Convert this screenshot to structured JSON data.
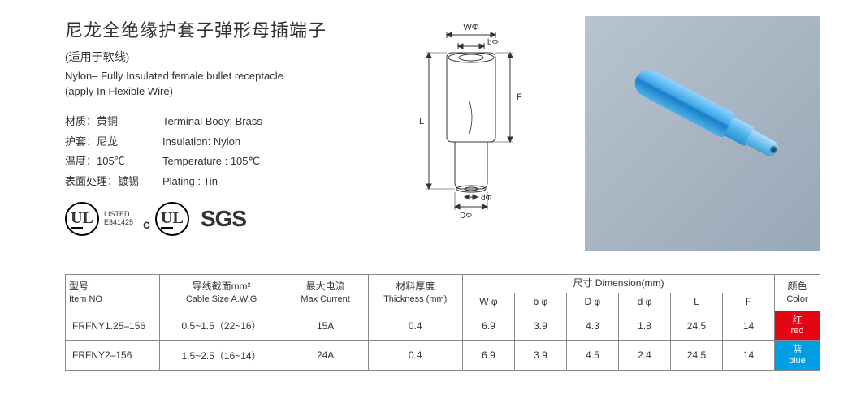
{
  "header": {
    "title_zh": "尼龙全绝缘护套子弹形母插端子",
    "subtitle_zh": "(适用于软线)",
    "title_en": "Nylon– Fully Insulated female bullet receptacle",
    "subtitle_en": "(apply In Flexible Wire)"
  },
  "specs": [
    {
      "zh": "材质：黄铜",
      "en": "Terminal Body: Brass"
    },
    {
      "zh": "护套：尼龙",
      "en": "Insulation: Nylon"
    },
    {
      "zh": "温度：105℃",
      "en": "Temperature : 105℃"
    },
    {
      "zh": "表面处理：镀锡",
      "en": "Plating : Tin"
    }
  ],
  "certs": {
    "ul": "UL",
    "listed": "LISTED",
    "listed_no": "E341425",
    "cul_prefix": "c",
    "sgs": "SGS"
  },
  "diagram": {
    "labels": {
      "W": "WΦ",
      "b": "bΦ",
      "F": "F",
      "L": "L",
      "D": "DΦ",
      "d": "dΦ"
    }
  },
  "photo": {
    "alt": "blue nylon insulated female bullet receptacle",
    "bg_gradient": [
      "#b8c4d0",
      "#98a8b8"
    ],
    "connector_color": "#3fa8e8"
  },
  "table": {
    "headers": {
      "item_zh": "型号",
      "item_en": "Item NO",
      "cable_zh": "导线截面mm²",
      "cable_en": "Cable Size  A.W.G",
      "max_zh": "最大电流",
      "max_en": "Max Current",
      "thk_zh": "材料厚度",
      "thk_en": "Thickness (mm)",
      "dim_zh": "尺寸",
      "dim_en": "Dimension(mm)",
      "dim_cols": [
        "W φ",
        "b φ",
        "D φ",
        "d φ",
        "L",
        "F"
      ],
      "color_zh": "颜色",
      "color_en": "Color"
    },
    "rows": [
      {
        "item": "FRFNY1.25–156",
        "cable": "0.5~1.5（22~16）",
        "max": "15A",
        "thk": "0.4",
        "dims": [
          "6.9",
          "3.9",
          "4.3",
          "1.8",
          "24.5",
          "14"
        ],
        "color_zh": "红",
        "color_en": "red",
        "color_hex": "#e30613"
      },
      {
        "item": "FRFNY2–156",
        "cable": "1.5~2.5（16~14）",
        "max": "24A",
        "thk": "0.4",
        "dims": [
          "6.9",
          "3.9",
          "4.5",
          "2.4",
          "24.5",
          "14"
        ],
        "color_zh": "蓝",
        "color_en": "blue",
        "color_hex": "#009fe3"
      }
    ]
  },
  "colors": {
    "text": "#333333",
    "border": "#888888",
    "bg": "#ffffff"
  }
}
